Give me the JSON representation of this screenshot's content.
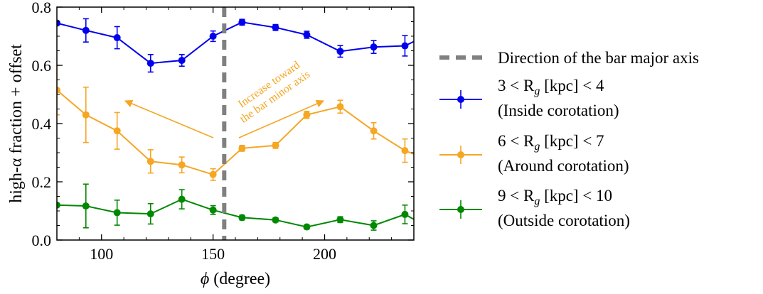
{
  "chart_data": {
    "type": "line",
    "xlabel_symbol": "ϕ",
    "xlabel_unit": "(degree)",
    "ylabel": "high-α fraction + offset",
    "xlim": [
      80,
      240
    ],
    "ylim": [
      0.0,
      0.8
    ],
    "xticks": [
      100,
      150,
      200
    ],
    "xtick_labels": [
      "100",
      "150",
      "200"
    ],
    "yticks": [
      0.0,
      0.2,
      0.4,
      0.6,
      0.8
    ],
    "ytick_labels": [
      "0.0",
      "0.2",
      "0.4",
      "0.6",
      "0.8"
    ],
    "grid": false,
    "legend_placement": "outside-right",
    "vline": {
      "x": 155,
      "label": "Direction of the bar major axis",
      "color": "#808080"
    },
    "annotation": {
      "text_line1": "Increase toward",
      "text_line2": "the bar minor axis",
      "color": "#f5a623"
    },
    "series": [
      {
        "legend_prefix": "3 < R",
        "legend_sub": "g",
        "legend_suffix": " [kpc] < 4",
        "legend_line2": "(Inside corotation)",
        "color": "#0000ee",
        "x": [
          80,
          93,
          107,
          122,
          136,
          150,
          163,
          178,
          192,
          207,
          222,
          236,
          245
        ],
        "y": [
          0.745,
          0.72,
          0.695,
          0.607,
          0.617,
          0.7,
          0.748,
          0.73,
          0.705,
          0.648,
          0.663,
          0.667,
          0.7
        ],
        "err": [
          0.0,
          0.04,
          0.038,
          0.03,
          0.02,
          0.018,
          0.01,
          0.01,
          0.012,
          0.02,
          0.022,
          0.035,
          0.04
        ]
      },
      {
        "legend_prefix": "6 < R",
        "legend_sub": "g",
        "legend_suffix": " [kpc] < 7",
        "legend_line2": "(Around corotation)",
        "color": "#f5a623",
        "x": [
          80,
          93,
          107,
          122,
          136,
          150,
          163,
          178,
          192,
          207,
          222,
          236,
          245
        ],
        "y": [
          0.515,
          0.43,
          0.375,
          0.27,
          0.258,
          0.225,
          0.315,
          0.325,
          0.43,
          0.458,
          0.375,
          0.307,
          0.28
        ],
        "err": [
          0.085,
          0.095,
          0.063,
          0.04,
          0.027,
          0.02,
          0.01,
          0.01,
          0.012,
          0.022,
          0.028,
          0.04,
          0.05
        ]
      },
      {
        "legend_prefix": "9 < R",
        "legend_sub": "g",
        "legend_suffix": " [kpc] < 10",
        "legend_line2": "(Outside corotation)",
        "color": "#008800",
        "x": [
          80,
          93,
          107,
          122,
          136,
          150,
          163,
          178,
          192,
          207,
          222,
          236,
          245
        ],
        "y": [
          0.12,
          0.117,
          0.094,
          0.09,
          0.14,
          0.103,
          0.077,
          0.069,
          0.045,
          0.07,
          0.05,
          0.088,
          0.05
        ],
        "err": [
          0.0,
          0.075,
          0.043,
          0.035,
          0.033,
          0.015,
          0.008,
          0.007,
          0.007,
          0.01,
          0.016,
          0.032,
          0.05
        ]
      }
    ]
  }
}
